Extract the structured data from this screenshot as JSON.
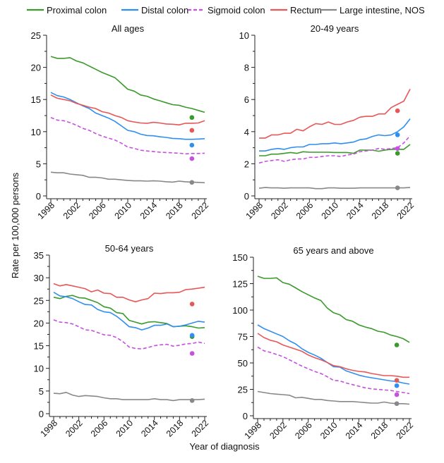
{
  "chart_data": {
    "type": "line",
    "ylabel": "Rate per 100,000 persons",
    "xlabel": "Year of diagnosis",
    "legend_position": "top",
    "x": [
      1998,
      1999,
      2000,
      2001,
      2002,
      2003,
      2004,
      2005,
      2006,
      2007,
      2008,
      2009,
      2010,
      2011,
      2012,
      2013,
      2014,
      2015,
      2016,
      2017,
      2018,
      2019,
      2020,
      2021,
      2022
    ],
    "x_tick_labels": [
      "1998",
      "2002",
      "2006",
      "2010",
      "2014",
      "2018",
      "2022"
    ],
    "series_meta": [
      {
        "key": "proximal",
        "name": "Proximal colon",
        "color": "#3a9a2a",
        "dashed": false
      },
      {
        "key": "distal",
        "name": "Distal colon",
        "color": "#2f8ff0",
        "dashed": false
      },
      {
        "key": "sigmoid",
        "name": "Sigmoid colon",
        "color": "#c650e0",
        "dashed": true
      },
      {
        "key": "rectum",
        "name": "Rectum",
        "color": "#e85757",
        "dashed": false
      },
      {
        "key": "nos",
        "name": "Large intestine, NOS",
        "color": "#888888",
        "dashed": false
      }
    ],
    "marker_year": 2020,
    "panels": [
      {
        "title": "All ages",
        "ylim": [
          0,
          25
        ],
        "ytick_step": 5,
        "series": {
          "proximal": [
            21.7,
            21.4,
            21.4,
            21.5,
            21.0,
            20.7,
            20.2,
            19.7,
            19.2,
            18.8,
            18.4,
            17.5,
            16.6,
            16.3,
            15.7,
            15.5,
            15.1,
            14.8,
            14.5,
            14.2,
            14.1,
            13.8,
            13.6,
            13.3,
            13.0
          ],
          "distal": [
            16.1,
            15.6,
            15.4,
            15.0,
            14.5,
            14.0,
            13.6,
            12.9,
            12.5,
            12.1,
            11.6,
            10.9,
            10.2,
            10.0,
            9.6,
            9.4,
            9.35,
            9.2,
            9.1,
            8.95,
            8.9,
            8.8,
            8.8,
            8.85,
            8.9
          ],
          "sigmoid": [
            12.2,
            11.8,
            11.7,
            11.4,
            11.0,
            10.5,
            10.2,
            9.7,
            9.3,
            9.0,
            8.7,
            8.2,
            7.6,
            7.4,
            7.1,
            7.0,
            6.9,
            6.8,
            6.75,
            6.7,
            6.65,
            6.55,
            6.6,
            6.6,
            6.65
          ],
          "rectum": [
            15.7,
            15.2,
            15.0,
            14.8,
            14.4,
            14.1,
            13.8,
            13.6,
            13.1,
            12.9,
            12.5,
            12.2,
            11.7,
            11.5,
            11.35,
            11.3,
            11.45,
            11.35,
            11.2,
            11.15,
            11.05,
            11.3,
            11.3,
            11.35,
            11.7
          ],
          "nos": [
            3.7,
            3.6,
            3.6,
            3.4,
            3.3,
            3.2,
            2.9,
            2.9,
            2.8,
            2.6,
            2.6,
            2.5,
            2.4,
            2.35,
            2.35,
            2.3,
            2.35,
            2.3,
            2.2,
            2.15,
            2.3,
            2.2,
            2.15,
            2.1,
            2.05
          ]
        },
        "markers": {
          "proximal": 12.2,
          "distal": 7.9,
          "sigmoid": 5.8,
          "rectum": 10.2,
          "nos": 2.1
        }
      },
      {
        "title": "20-49 years",
        "ylim": [
          0,
          10
        ],
        "ytick_step": 2,
        "series": {
          "proximal": [
            2.5,
            2.5,
            2.6,
            2.6,
            2.65,
            2.7,
            2.65,
            2.75,
            2.72,
            2.72,
            2.72,
            2.72,
            2.7,
            2.7,
            2.7,
            2.65,
            2.85,
            2.85,
            2.85,
            2.78,
            2.85,
            2.9,
            2.9,
            2.9,
            3.2
          ],
          "distal": [
            2.8,
            2.8,
            2.9,
            2.95,
            2.9,
            3.0,
            3.05,
            3.05,
            3.2,
            3.2,
            3.25,
            3.25,
            3.3,
            3.25,
            3.3,
            3.35,
            3.5,
            3.55,
            3.7,
            3.8,
            3.75,
            3.8,
            4.0,
            4.3,
            4.8
          ],
          "sigmoid": [
            2.05,
            2.15,
            2.2,
            2.25,
            2.15,
            2.25,
            2.3,
            2.3,
            2.4,
            2.4,
            2.45,
            2.5,
            2.5,
            2.45,
            2.55,
            2.6,
            2.75,
            2.8,
            2.85,
            2.95,
            2.9,
            2.95,
            3.0,
            3.3,
            3.75
          ],
          "rectum": [
            3.6,
            3.6,
            3.8,
            3.8,
            3.9,
            3.9,
            4.15,
            4.05,
            4.3,
            4.5,
            4.45,
            4.6,
            4.45,
            4.45,
            4.6,
            4.7,
            4.9,
            4.95,
            4.95,
            5.1,
            5.1,
            5.5,
            5.7,
            5.9,
            6.65
          ],
          "nos": [
            0.48,
            0.52,
            0.5,
            0.5,
            0.48,
            0.5,
            0.5,
            0.5,
            0.5,
            0.45,
            0.45,
            0.5,
            0.5,
            0.48,
            0.48,
            0.48,
            0.5,
            0.5,
            0.5,
            0.5,
            0.5,
            0.5,
            0.5,
            0.5,
            0.52
          ]
        },
        "markers": {
          "proximal": 2.65,
          "distal": 3.8,
          "sigmoid": 2.95,
          "rectum": 5.3,
          "nos": 0.5
        }
      },
      {
        "title": "50-64 years",
        "ylim": [
          0,
          35
        ],
        "ytick_step": 5,
        "series": {
          "proximal": [
            25.7,
            25.4,
            25.9,
            26.1,
            25.6,
            25.5,
            25.0,
            24.5,
            23.6,
            23.3,
            22.3,
            22.1,
            20.6,
            20.2,
            19.8,
            20.2,
            20.3,
            20.1,
            19.9,
            19.2,
            19.3,
            19.4,
            19.2,
            18.9,
            19.0
          ],
          "distal": [
            26.8,
            26.0,
            25.8,
            25.4,
            24.7,
            24.1,
            24.0,
            23.0,
            22.5,
            22.3,
            21.5,
            20.4,
            19.2,
            19.0,
            18.5,
            18.9,
            19.5,
            19.5,
            19.8,
            19.2,
            19.3,
            19.6,
            20.0,
            20.4,
            20.2
          ],
          "sigmoid": [
            20.7,
            20.2,
            20.1,
            19.8,
            19.2,
            18.5,
            18.4,
            17.9,
            17.4,
            17.3,
            16.8,
            15.9,
            14.7,
            14.4,
            14.3,
            14.6,
            15.0,
            15.2,
            15.3,
            14.9,
            15.1,
            15.4,
            15.5,
            15.8,
            15.5
          ],
          "rectum": [
            28.7,
            28.2,
            28.5,
            28.2,
            27.9,
            27.6,
            26.9,
            27.3,
            26.6,
            26.5,
            25.7,
            25.7,
            25.1,
            24.7,
            25.1,
            25.4,
            26.6,
            26.5,
            26.7,
            26.7,
            26.8,
            27.4,
            27.5,
            27.7,
            27.9
          ],
          "nos": [
            4.5,
            4.4,
            4.7,
            4.1,
            3.8,
            4.0,
            3.9,
            3.8,
            3.5,
            3.3,
            3.3,
            3.1,
            3.1,
            3.1,
            3.1,
            3.1,
            3.3,
            3.1,
            3.1,
            2.9,
            3.1,
            3.1,
            3.1,
            3.1,
            3.2
          ]
        },
        "markers": {
          "proximal": 17.0,
          "distal": 17.3,
          "sigmoid": 13.3,
          "rectum": 24.2,
          "nos": 2.9
        }
      },
      {
        "title": "65 years and above",
        "ylim": [
          0,
          150
        ],
        "ytick_step": 25,
        "series": {
          "proximal": [
            132,
            130,
            130,
            130.5,
            126,
            124.5,
            121,
            117.5,
            114.5,
            111.5,
            109,
            102,
            97.5,
            95.5,
            91,
            89.5,
            86,
            84,
            82.5,
            80,
            79,
            76.5,
            75,
            73,
            69.5
          ],
          "distal": [
            86,
            82.5,
            80,
            77.5,
            75,
            71,
            68,
            63.5,
            60,
            57.5,
            54.5,
            50.5,
            46.5,
            46,
            42.5,
            40.5,
            38.5,
            37,
            36,
            35,
            34,
            33,
            32.5,
            31,
            30
          ],
          "sigmoid": [
            65,
            61.5,
            60,
            58,
            56,
            53,
            50,
            47,
            44.5,
            42,
            40,
            37,
            33.5,
            33,
            31,
            29.5,
            28,
            26.5,
            25.5,
            25,
            24.5,
            24,
            23,
            22,
            21
          ],
          "rectum": [
            78,
            74,
            71.5,
            70,
            67,
            65,
            63,
            61,
            57.5,
            55,
            53,
            50.5,
            47.5,
            46.5,
            44.5,
            43,
            42,
            41.5,
            40,
            39,
            38,
            38,
            37.5,
            36.5,
            36.5
          ],
          "nos": [
            23,
            22,
            21,
            20.5,
            20,
            19.5,
            17,
            17.5,
            16.5,
            15.5,
            15.5,
            14.5,
            14,
            13.5,
            13.5,
            13.5,
            13,
            12.5,
            12,
            12,
            13,
            12,
            11.5,
            11.5,
            11
          ]
        },
        "markers": {
          "proximal": 67,
          "distal": 28.5,
          "sigmoid": 20,
          "rectum": 33.5,
          "nos": 11.5
        }
      }
    ]
  }
}
